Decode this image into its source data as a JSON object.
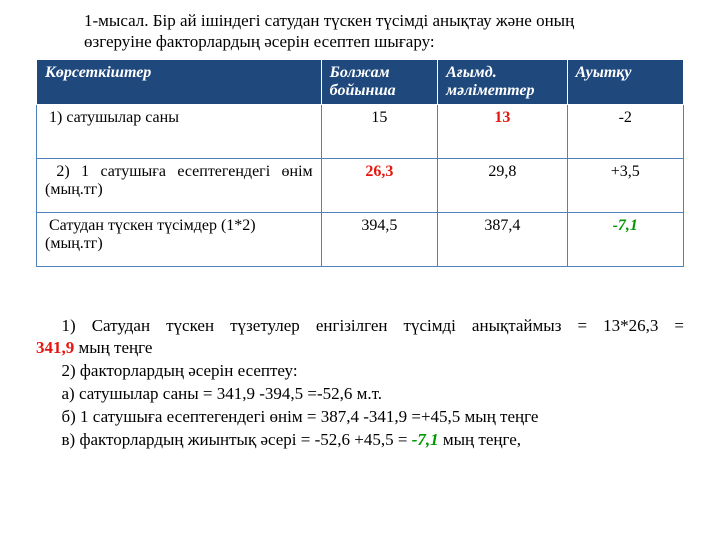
{
  "title": "1-мысал. Бір ай ішіндегі сатудан түскен түсімді анықтау және оның өзгеруіне факторлардың әсерін есептеп шығару:",
  "table": {
    "headers": {
      "indicators": "Көрсеткіштер",
      "forecast": "Болжам бойынша",
      "current": "Ағымд. мәліметтер",
      "deviation": "Ауытқу"
    },
    "rows": [
      {
        "name": "1) сатушылар саны",
        "forecast": "15",
        "current": {
          "value": "13",
          "style": "red"
        },
        "deviation": "-2"
      },
      {
        "name": "2) 1 сатушыға есептегендегі өнім (мың.тг)",
        "forecast": {
          "value": "26,3",
          "style": "red"
        },
        "current": "29,8",
        "deviation": "+3,5"
      },
      {
        "name": "Сатудан түскен түсімдер (1*2) (мың.тг)",
        "forecast": "394,5",
        "current": "387,4",
        "deviation": {
          "value": "-7,1",
          "style": "green"
        }
      }
    ]
  },
  "calc": {
    "line1_a": "1) Сатудан түскен түзетулер енгізілген түсімді  анықтаймыз = 13*26,3 =",
    "line1_b": "341,9",
    "line1_c": " мың теңге",
    "line2": "2) факторлардың әсерін есептеу:",
    "line3": "а) сатушылар саны = 341,9 -394,5 =-52,6 м.т.",
    "line4": "б) 1 сатушыға есептегендегі өнім = 387,4 -341,9 =+45,5 мың теңге",
    "line5_a": "в) факторлардың жиынтық әсері = -52,6 +45,5 = ",
    "line5_b": "-7,1",
    "line5_c": " мың теңге,"
  }
}
